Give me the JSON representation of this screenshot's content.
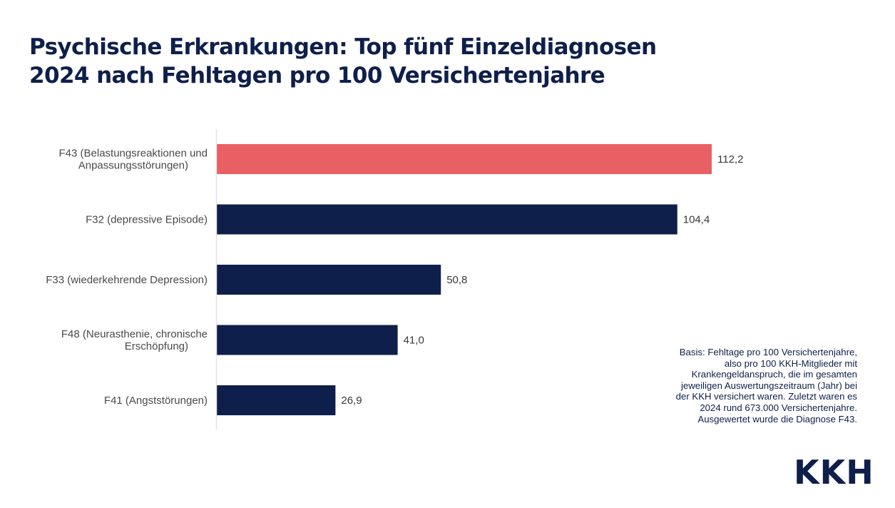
{
  "title": {
    "line1": "Psychische Erkrankungen: Top fünf Einzeldiagnosen",
    "line2": "2024 nach Fehltagen pro 100 Versichertenjahre"
  },
  "colors": {
    "title": "#0f1f4b",
    "highlight_bar": "#e85f64",
    "default_bar": "#0f1f4b",
    "axis": "#e3e3e3"
  },
  "chart_data": {
    "type": "bar",
    "orientation": "horizontal",
    "title": "Psychische Erkrankungen: Top fünf Einzeldiagnosen 2024 nach Fehltagen pro 100 Versichertenjahre",
    "xlabel": "",
    "ylabel": "",
    "xlim": [
      0,
      112.2
    ],
    "grid": false,
    "legend": "none",
    "categories": [
      [
        "F43 (Belastungsreaktionen und",
        "Anpassungsstörungen)"
      ],
      [
        "F32 (depressive Episode)"
      ],
      [
        "F33 (wiederkehrende Depression)"
      ],
      [
        "F48 (Neurasthenie, chronische",
        "Erschöpfung)"
      ],
      [
        "F41 (Angststörungen)"
      ]
    ],
    "values": [
      112.2,
      104.4,
      50.8,
      41.0,
      26.9
    ],
    "value_labels": [
      "112,2",
      "104,4",
      "50,8",
      "41,0",
      "26,9"
    ],
    "highlight": [
      true,
      false,
      false,
      false,
      false
    ]
  },
  "note": {
    "lines": [
      "Basis: Fehltage pro 100 Versichertenjahre,",
      "also pro 100 KKH-Mitglieder mit",
      "Krankengeldanspruch, die im gesamten",
      "jeweiligen Auswertungszeitraum (Jahr) bei",
      "der KKH versichert waren. Zuletzt waren es",
      "2024 rund 673.000 Versichertenjahre.",
      "Ausgewertet wurde die Diagnose F43."
    ]
  },
  "logo": {
    "text": "KKH"
  }
}
